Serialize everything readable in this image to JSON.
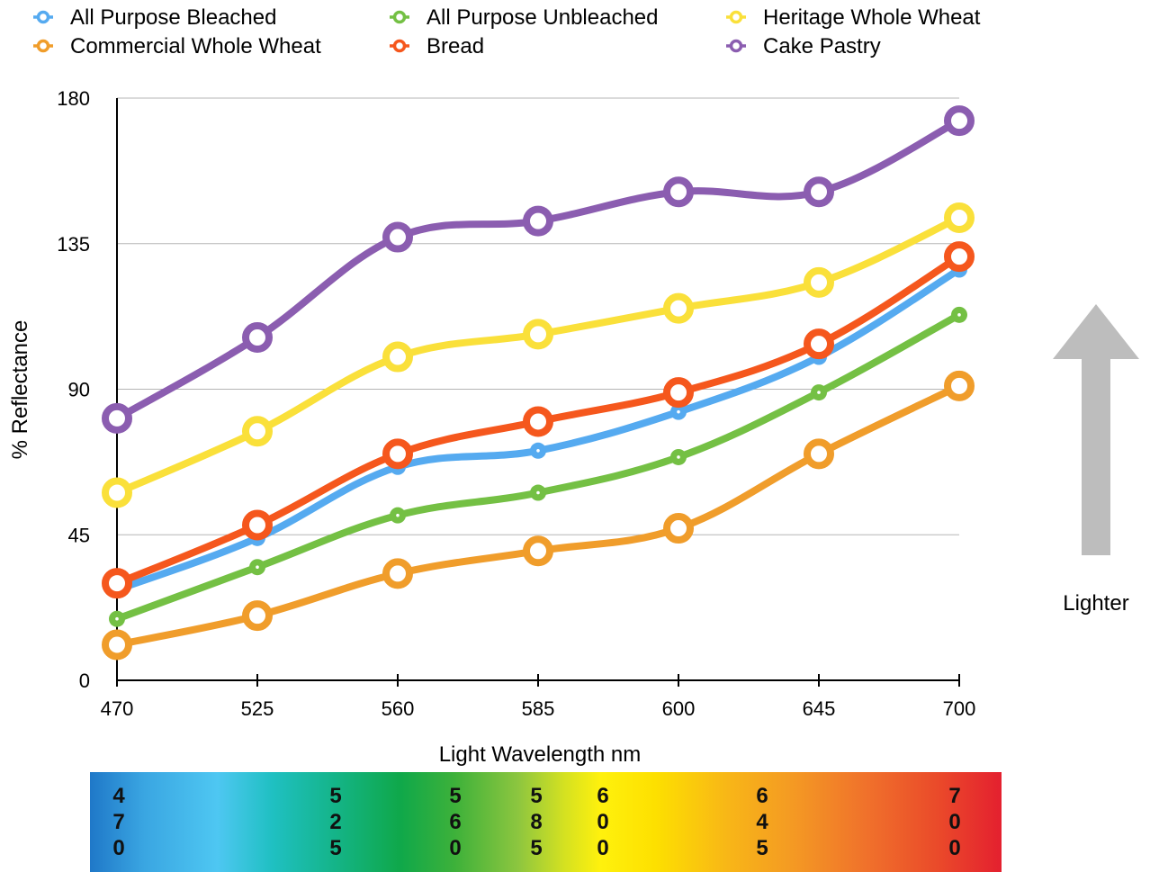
{
  "chart_data": {
    "type": "line",
    "title": "",
    "xlabel": "Light Wavelength nm",
    "ylabel": "% Reflectance",
    "categories": [
      "470",
      "525",
      "560",
      "585",
      "600",
      "645",
      "700"
    ],
    "ylim": [
      0,
      180
    ],
    "yticks": [
      "0",
      "45",
      "90",
      "135",
      "180"
    ],
    "grid": true,
    "legend_position": "top",
    "series": [
      {
        "name": "All Purpose Bleached",
        "color": "#55aaf0",
        "marker": "small",
        "values": [
          28,
          44,
          66,
          71,
          83,
          100,
          127
        ]
      },
      {
        "name": "All Purpose Unbleached",
        "color": "#74c044",
        "marker": "small",
        "values": [
          19,
          35,
          51,
          58,
          69,
          89,
          113
        ]
      },
      {
        "name": "Heritage Whole Wheat",
        "color": "#fae03a",
        "marker": "large",
        "values": [
          58,
          77,
          100,
          107,
          115,
          123,
          143
        ]
      },
      {
        "name": "Commercial Whole Wheat",
        "color": "#f09d2b",
        "marker": "large",
        "values": [
          11,
          20,
          33,
          40,
          47,
          70,
          91
        ]
      },
      {
        "name": "Bread",
        "color": "#f5571d",
        "marker": "large",
        "values": [
          30,
          48,
          70,
          80,
          89,
          104,
          131
        ]
      },
      {
        "name": "Cake Pastry",
        "color": "#8b5db0",
        "marker": "large",
        "values": [
          81,
          106,
          137,
          142,
          151,
          151,
          173
        ]
      }
    ],
    "annotation": "Lighter",
    "spectrum_labels": [
      "470",
      "525",
      "560",
      "585",
      "600",
      "645",
      "700"
    ]
  }
}
